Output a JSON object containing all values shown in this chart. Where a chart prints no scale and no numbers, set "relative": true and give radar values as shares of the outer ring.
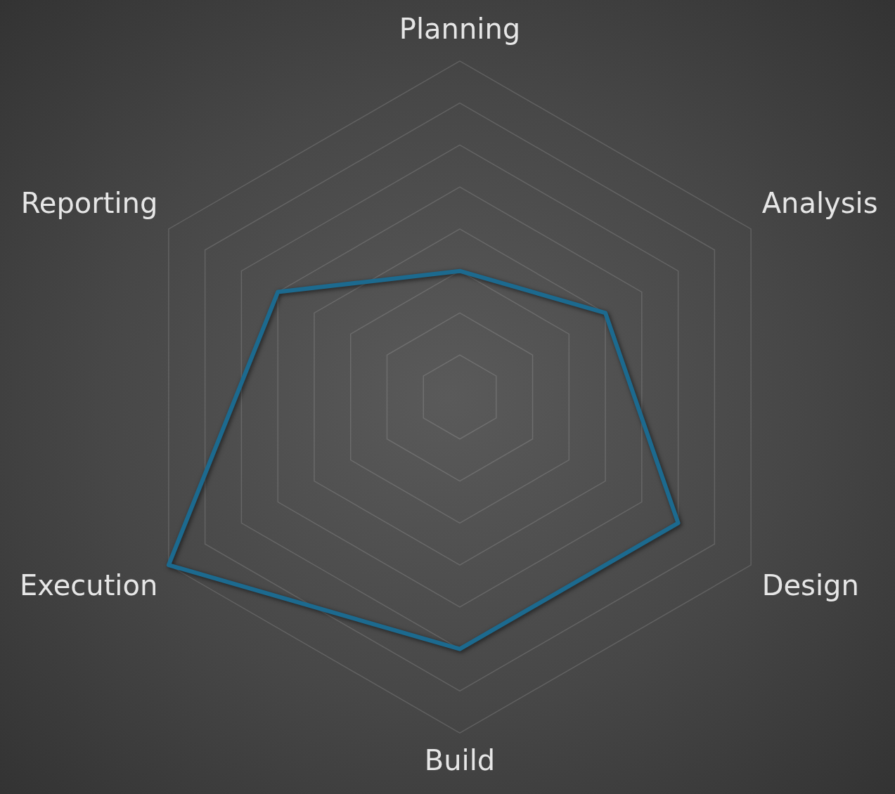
{
  "chart_data": {
    "type": "radar",
    "relative": true,
    "grid": true,
    "categories": [
      "Planning",
      "Analysis",
      "Design",
      "Build",
      "Execution",
      "Reporting"
    ],
    "series": [
      {
        "color": "#1c6a8f",
        "values": [
          0.375,
          0.5,
          0.75,
          0.75,
          1.0,
          0.625
        ]
      }
    ]
  }
}
